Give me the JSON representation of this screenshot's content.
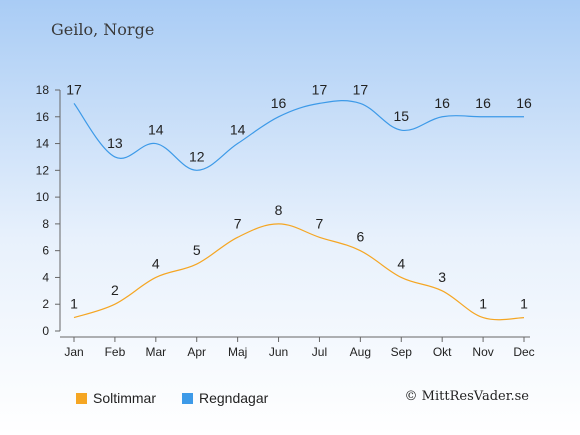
{
  "location": "Geilo, Norge",
  "copyright": "© MittResVader.se",
  "chart_data": {
    "type": "line",
    "categories": [
      "Jan",
      "Feb",
      "Mar",
      "Apr",
      "Maj",
      "Jun",
      "Jul",
      "Aug",
      "Sep",
      "Okt",
      "Nov",
      "Dec"
    ],
    "series": [
      {
        "name": "Soltimmar",
        "color": "#f5a623",
        "values": [
          1,
          2,
          4,
          5,
          7,
          8,
          7,
          6,
          4,
          3,
          1,
          1
        ]
      },
      {
        "name": "Regndagar",
        "color": "#3d9ae8",
        "values": [
          17,
          13,
          14,
          12,
          14,
          16,
          17,
          17,
          15,
          16,
          16,
          16
        ]
      }
    ],
    "ylim": [
      0,
      18
    ],
    "yticks": [
      0,
      2,
      4,
      6,
      8,
      10,
      12,
      14,
      16,
      18
    ],
    "legend": "bottom-left"
  }
}
